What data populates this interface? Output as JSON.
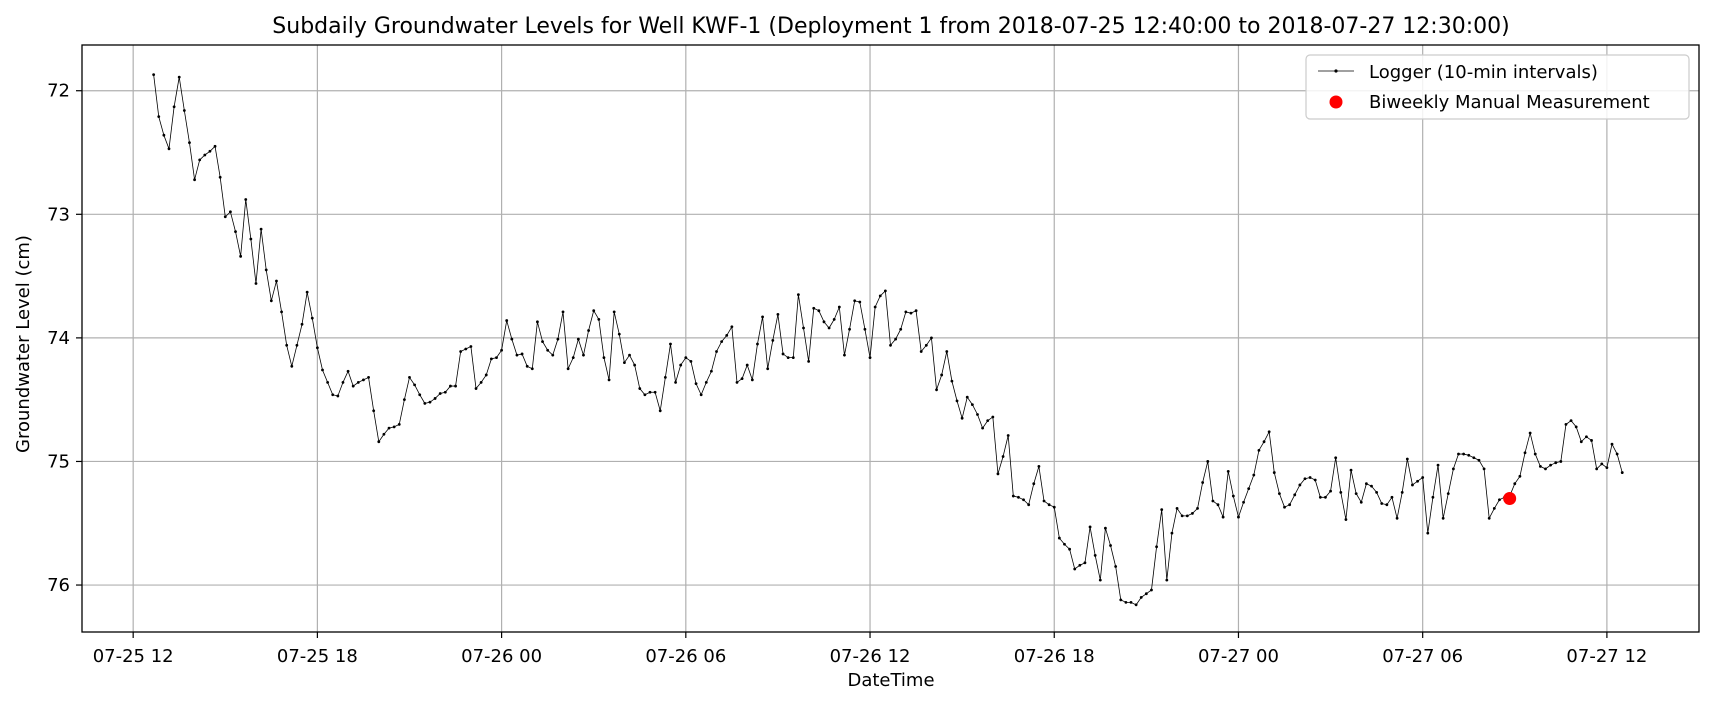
{
  "chart_data": {
    "type": "line",
    "title": "Subdaily Groundwater Levels for Well KWF-1 (Deployment 1 from 2018-07-25 12:40:00 to 2018-07-27 12:30:00)",
    "xlabel": "DateTime",
    "ylabel": "Groundwater Level (cm)",
    "x_range": [
      "2018-07-25 10:20",
      "2018-07-27 15:00"
    ],
    "ylim": [
      76.38,
      71.63
    ],
    "y_inverted": true,
    "grid": true,
    "legend_position": "top-right",
    "x_ticks": [
      {
        "value": "2018-07-25 12:00",
        "label": "07-25 12"
      },
      {
        "value": "2018-07-25 18:00",
        "label": "07-25 18"
      },
      {
        "value": "2018-07-26 00:00",
        "label": "07-26 00"
      },
      {
        "value": "2018-07-26 06:00",
        "label": "07-26 06"
      },
      {
        "value": "2018-07-26 12:00",
        "label": "07-26 12"
      },
      {
        "value": "2018-07-26 18:00",
        "label": "07-26 18"
      },
      {
        "value": "2018-07-27 00:00",
        "label": "07-27 00"
      },
      {
        "value": "2018-07-27 06:00",
        "label": "07-27 06"
      },
      {
        "value": "2018-07-27 12:00",
        "label": "07-27 12"
      }
    ],
    "y_ticks": [
      {
        "value": 72,
        "label": "72"
      },
      {
        "value": 73,
        "label": "73"
      },
      {
        "value": 74,
        "label": "74"
      },
      {
        "value": 75,
        "label": "75"
      },
      {
        "value": 76,
        "label": "76"
      }
    ],
    "series": [
      {
        "name": "Logger (10-min intervals)",
        "color": "#000000",
        "style": "line-with-dots",
        "start": "2018-07-25 12:40",
        "interval_minutes": 10,
        "values": [
          71.87,
          72.21,
          72.36,
          72.47,
          72.13,
          71.89,
          72.16,
          72.42,
          72.72,
          72.56,
          72.52,
          72.49,
          72.45,
          72.7,
          73.02,
          72.98,
          73.14,
          73.34,
          72.88,
          73.2,
          73.56,
          73.12,
          73.45,
          73.7,
          73.54,
          73.79,
          74.06,
          74.23,
          74.06,
          73.89,
          73.63,
          73.84,
          74.08,
          74.26,
          74.36,
          74.46,
          74.47,
          74.36,
          74.27,
          74.39,
          74.36,
          74.34,
          74.32,
          74.59,
          74.84,
          74.78,
          74.73,
          74.72,
          74.7,
          74.5,
          74.32,
          74.38,
          74.46,
          74.53,
          74.52,
          74.49,
          74.45,
          74.44,
          74.39,
          74.39,
          74.11,
          74.09,
          74.07,
          74.41,
          74.36,
          74.3,
          74.17,
          74.16,
          74.1,
          73.86,
          74.01,
          74.14,
          74.13,
          74.23,
          74.25,
          73.87,
          74.03,
          74.1,
          74.14,
          74.01,
          73.79,
          74.25,
          74.16,
          74.01,
          74.14,
          73.94,
          73.78,
          73.85,
          74.16,
          74.34,
          73.79,
          73.97,
          74.2,
          74.14,
          74.22,
          74.41,
          74.46,
          74.44,
          74.44,
          74.59,
          74.32,
          74.05,
          74.36,
          74.22,
          74.16,
          74.19,
          74.37,
          74.46,
          74.36,
          74.27,
          74.11,
          74.03,
          73.98,
          73.91,
          74.36,
          74.33,
          74.22,
          74.34,
          74.05,
          73.83,
          74.25,
          74.02,
          73.81,
          74.13,
          74.16,
          74.16,
          73.65,
          73.92,
          74.19,
          73.76,
          73.78,
          73.87,
          73.92,
          73.85,
          73.75,
          74.14,
          73.93,
          73.7,
          73.71,
          73.93,
          74.16,
          73.75,
          73.66,
          73.62,
          74.06,
          74.01,
          73.93,
          73.79,
          73.8,
          73.78,
          74.11,
          74.06,
          74.0,
          74.42,
          74.3,
          74.11,
          74.35,
          74.51,
          74.65,
          74.48,
          74.54,
          74.62,
          74.73,
          74.67,
          74.64,
          75.1,
          74.96,
          74.79,
          75.28,
          75.29,
          75.31,
          75.35,
          75.18,
          75.04,
          75.32,
          75.35,
          75.37,
          75.62,
          75.67,
          75.71,
          75.87,
          75.84,
          75.82,
          75.53,
          75.76,
          75.96,
          75.54,
          75.68,
          75.85,
          76.12,
          76.14,
          76.14,
          76.16,
          76.1,
          76.07,
          76.04,
          75.69,
          75.39,
          75.96,
          75.58,
          75.38,
          75.44,
          75.44,
          75.42,
          75.38,
          75.17,
          75.0,
          75.32,
          75.35,
          75.45,
          75.08,
          75.28,
          75.45,
          75.33,
          75.22,
          75.11,
          74.91,
          74.84,
          74.76,
          75.09,
          75.26,
          75.37,
          75.35,
          75.27,
          75.19,
          75.14,
          75.13,
          75.15,
          75.29,
          75.29,
          75.24,
          74.97,
          75.25,
          75.47,
          75.07,
          75.26,
          75.33,
          75.18,
          75.2,
          75.25,
          75.34,
          75.35,
          75.29,
          75.46,
          75.25,
          74.98,
          75.19,
          75.16,
          75.13,
          75.58,
          75.29,
          75.03,
          75.46,
          75.26,
          75.06,
          74.94,
          74.94,
          74.95,
          74.97,
          74.99,
          75.06,
          75.46,
          75.38,
          75.31,
          75.29,
          75.28,
          75.18,
          75.12,
          74.93,
          74.77,
          74.94,
          75.04,
          75.06,
          75.03,
          75.01,
          75.0,
          74.7,
          74.67,
          74.72,
          74.84,
          74.8,
          74.83,
          75.06,
          75.02,
          75.05,
          74.86,
          74.94,
          75.09
        ]
      },
      {
        "name": "Biweekly Manual Measurement",
        "color": "#ff0000",
        "style": "marker",
        "points": [
          {
            "x": "2018-07-27 08:50",
            "y": 75.3
          }
        ]
      }
    ]
  }
}
